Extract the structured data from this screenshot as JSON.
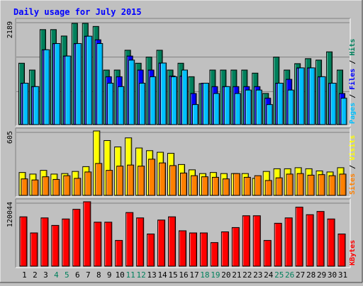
{
  "chart_data": {
    "type": "bar",
    "title": "Daily usage for July 2015",
    "colors": {
      "background": "#C0C0C0",
      "title": "#0000FF",
      "hits": "#00805C",
      "files": "#0000FF",
      "pages": "#00C0FF",
      "visits": "#FFFF00",
      "sites": "#FF8000",
      "kbytes": "#FF0000",
      "weekend_label": "#00805C",
      "grid": "#808080"
    },
    "categories": [
      "1",
      "2",
      "3",
      "4",
      "5",
      "6",
      "7",
      "8",
      "9",
      "10",
      "11",
      "12",
      "13",
      "14",
      "15",
      "16",
      "17",
      "18",
      "19",
      "20",
      "21",
      "22",
      "23",
      "24",
      "25",
      "26",
      "27",
      "28",
      "29",
      "30",
      "31"
    ],
    "weekend_days": [
      "4",
      "5",
      "11",
      "12",
      "18",
      "19",
      "25",
      "26"
    ],
    "panels": [
      {
        "id": "top",
        "max_label": "2189",
        "ylim": [
          0,
          2189
        ],
        "legend": [
          "Pages",
          "Files",
          "Hits"
        ],
        "series": [
          {
            "name": "Hits",
            "color": "#00805C",
            "values": [
              1300,
              1155,
              2012,
              2012,
              1876,
              2145,
              2145,
              2079,
              1155,
              1155,
              1575,
              1300,
              1430,
              1575,
              1155,
              1300,
              1014,
              869,
              1155,
              1155,
              1155,
              1155,
              1090,
              661,
              1430,
              1155,
              1291,
              1397,
              1366,
              1541,
              1155
            ]
          },
          {
            "name": "Files",
            "color": "#0000FF",
            "values": [
              877,
              805,
              1585,
              1717,
              1452,
              1717,
              1872,
              1796,
              1014,
              1014,
              1452,
              1155,
              1155,
              1304,
              1029,
              1029,
              659,
              877,
              805,
              805,
              805,
              805,
              805,
              559,
              877,
              959,
              1201,
              1201,
              1014,
              877,
              659
            ]
          },
          {
            "name": "Pages",
            "color": "#00C0FF",
            "values": [
              877,
              805,
              1585,
              1717,
              1452,
              1717,
              1872,
              1717,
              877,
              805,
              1366,
              877,
              1014,
              1304,
              1014,
              1155,
              425,
              877,
              659,
              805,
              659,
              732,
              732,
              425,
              877,
              732,
              1201,
              1201,
              1014,
              877,
              559
            ]
          }
        ]
      },
      {
        "id": "middle",
        "max_label": "605",
        "ylim": [
          0,
          605
        ],
        "legend": [
          "Sites",
          "Visits"
        ],
        "series": [
          {
            "name": "Visits",
            "color": "#FFFF00",
            "values": [
              215,
              200,
              235,
              200,
              205,
              225,
              270,
              605,
              515,
              455,
              540,
              445,
              420,
              405,
              395,
              290,
              240,
              205,
              215,
              205,
              205,
              205,
              160,
              225,
              250,
              250,
              260,
              250,
              230,
              220,
              260
            ]
          },
          {
            "name": "Sites",
            "color": "#FF8000",
            "values": [
              155,
              145,
              175,
              150,
              185,
              160,
              220,
              300,
              235,
              275,
              285,
              275,
              340,
              305,
              280,
              210,
              185,
              175,
              170,
              155,
              205,
              170,
              185,
              140,
              165,
              200,
              205,
              190,
              195,
              185,
              200
            ]
          }
        ]
      },
      {
        "id": "bottom",
        "max_label": "120044",
        "ylim": [
          0,
          120044
        ],
        "legend": [
          "KBytes"
        ],
        "series": [
          {
            "name": "KBytes",
            "color": "#FF0000",
            "values": [
              92000,
              62000,
              90000,
              76000,
              88000,
              106000,
              120044,
              82000,
              82000,
              48000,
              100000,
              90000,
              60000,
              86000,
              92000,
              66000,
              62000,
              62000,
              44000,
              64000,
              72000,
              94000,
              94000,
              48000,
              80000,
              90000,
              110000,
              96000,
              102000,
              88000,
              60000
            ]
          }
        ]
      }
    ]
  }
}
